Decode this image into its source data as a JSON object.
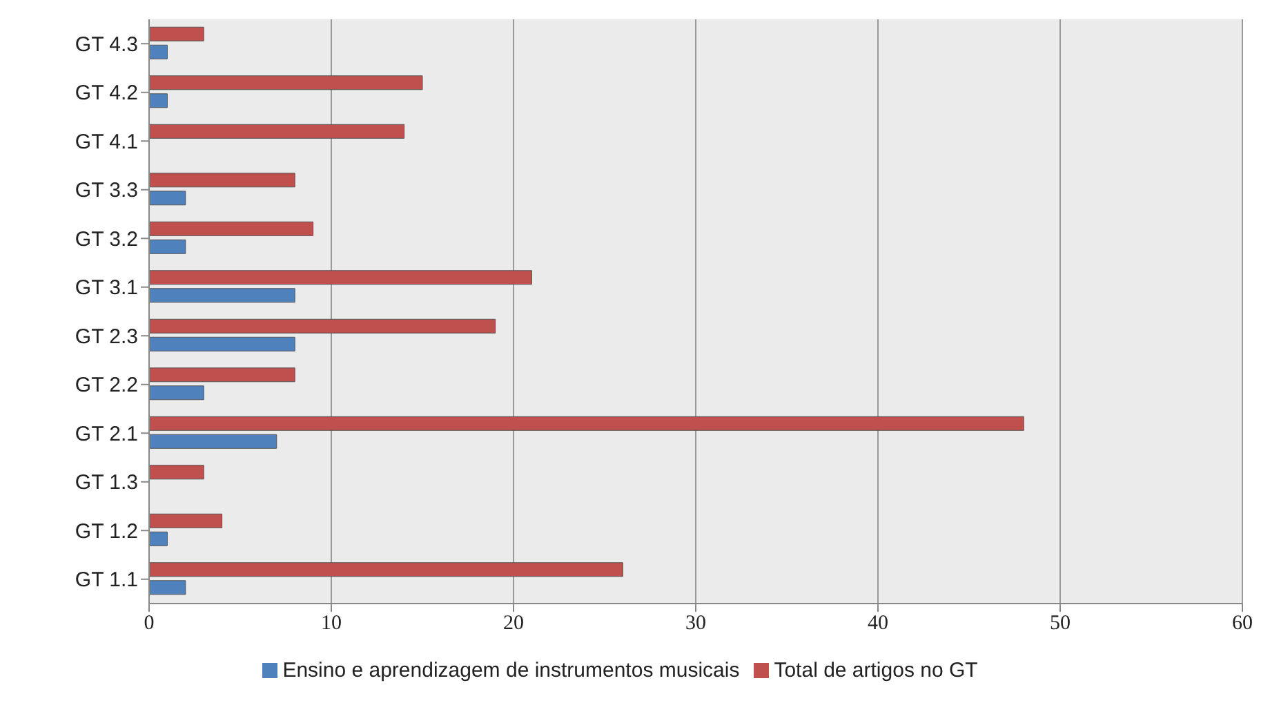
{
  "chart_data": {
    "type": "bar",
    "orientation": "horizontal",
    "categories": [
      "GT 4.3",
      "GT 4.2",
      "GT 4.1",
      "GT 3.3",
      "GT 3.2",
      "GT 3.1",
      "GT 2.3",
      "GT 2.2",
      "GT 2.1",
      "GT 1.3",
      "GT 1.2",
      "GT 1.1"
    ],
    "series": [
      {
        "name": "Total de artigos no GT",
        "color": "#c0504d",
        "values": [
          3,
          15,
          14,
          8,
          9,
          21,
          19,
          8,
          48,
          3,
          4,
          26
        ]
      },
      {
        "name": "Ensino e aprendizagem de instrumentos musicais",
        "color": "#4f81bd",
        "values": [
          1,
          1,
          0,
          2,
          2,
          8,
          8,
          3,
          7,
          0,
          1,
          2
        ]
      }
    ],
    "xlim": [
      0,
      60
    ],
    "xticks": [
      0,
      10,
      20,
      30,
      40,
      50,
      60
    ],
    "grid": "x",
    "legend": "bottom"
  }
}
